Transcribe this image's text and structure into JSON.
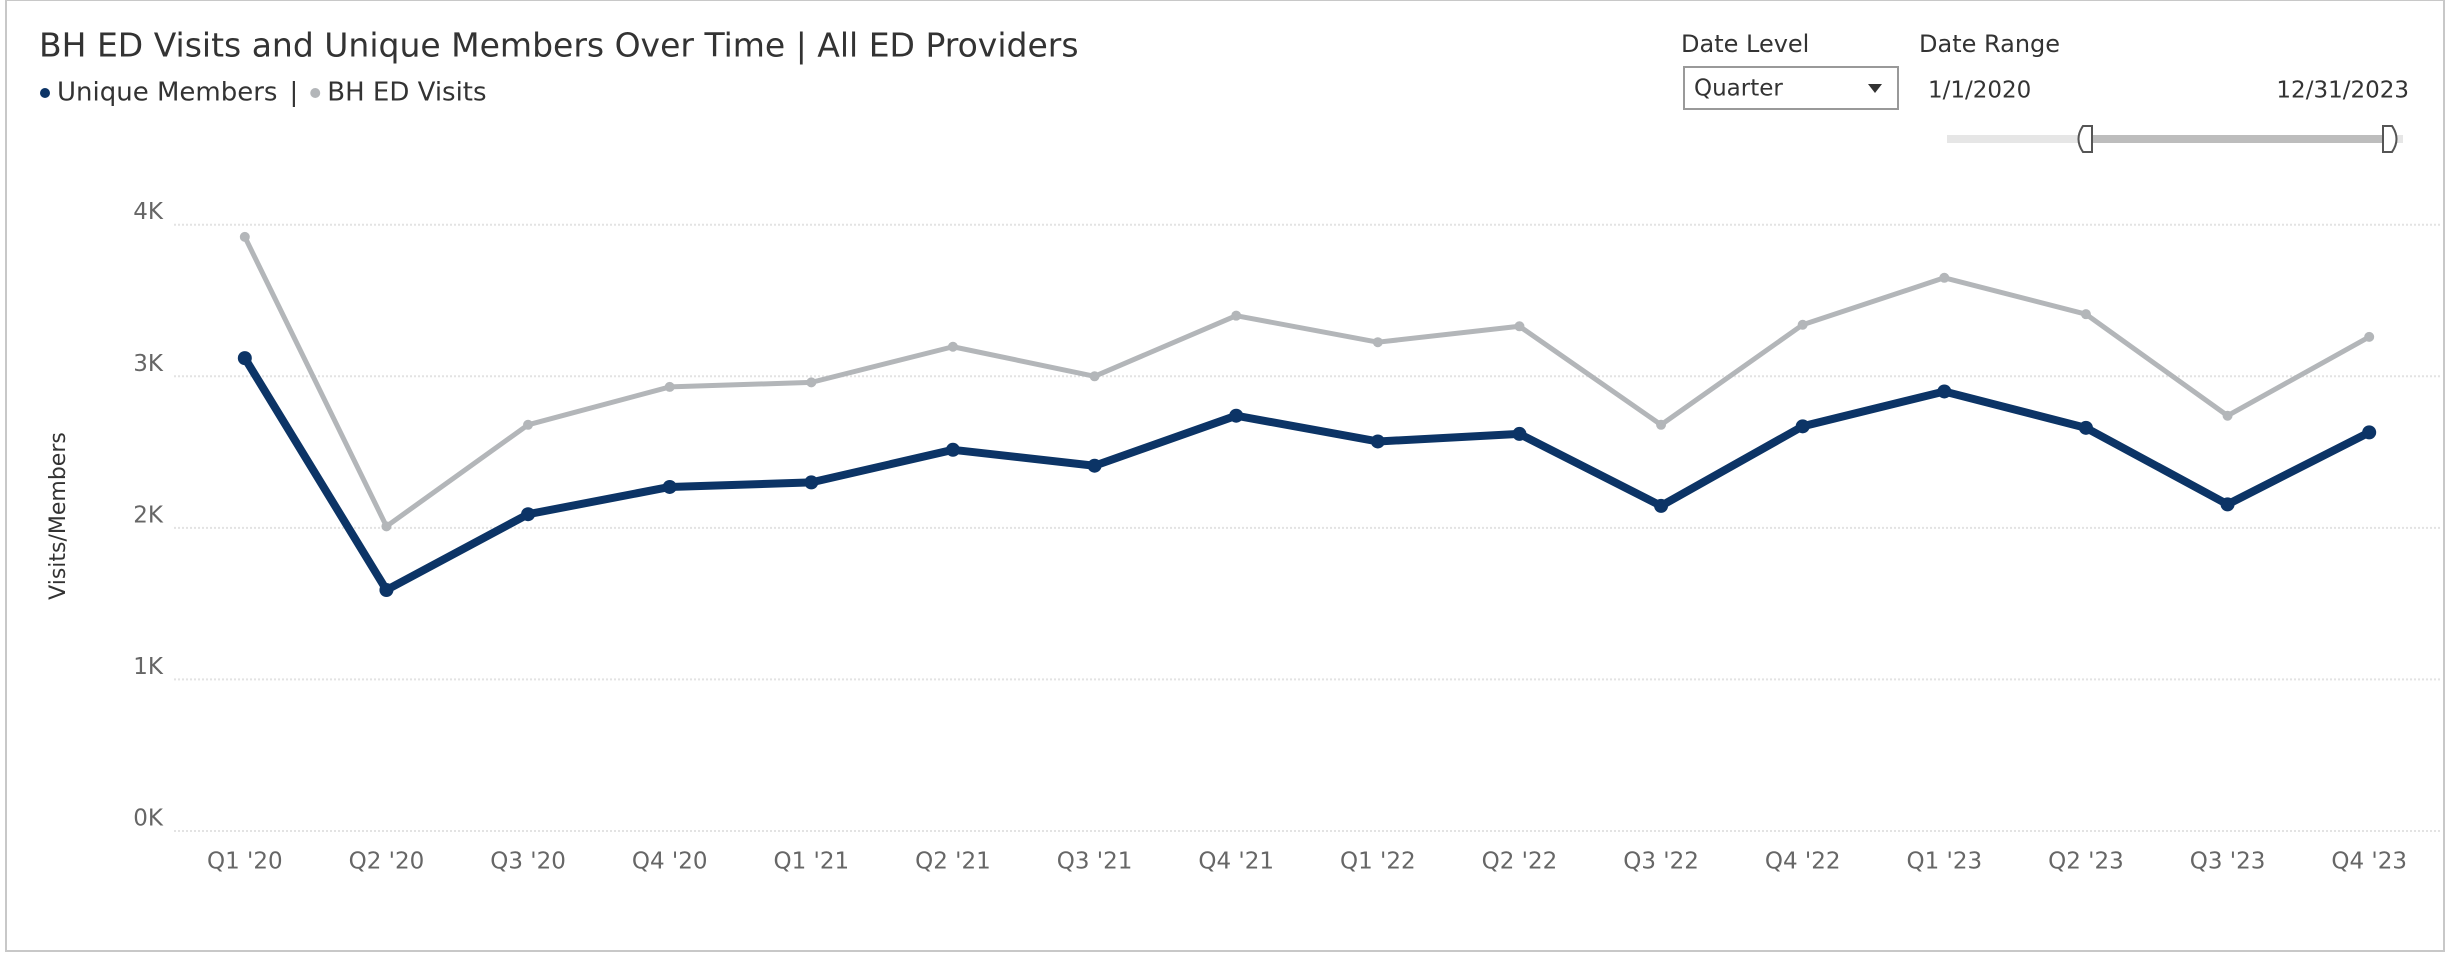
{
  "chart_data": {
    "type": "line",
    "title": "BH ED Visits and Unique Members Over Time | All ED Providers",
    "legend_separator": "|",
    "y_label": "Visits/Members",
    "categories": [
      "Q1 '20",
      "Q2 '20",
      "Q3 '20",
      "Q4 '20",
      "Q1 '21",
      "Q2 '21",
      "Q3 '21",
      "Q4 '21",
      "Q1 '22",
      "Q2 '22",
      "Q3 '22",
      "Q4 '22",
      "Q1 '23",
      "Q2 '23",
      "Q3 '23",
      "Q4 '23"
    ],
    "series": [
      {
        "name": "Unique Members",
        "color": "#0c3466",
        "values": [
          3120,
          1590,
          2090,
          2270,
          2300,
          2515,
          2410,
          2740,
          2570,
          2620,
          2145,
          2670,
          2900,
          2660,
          2155,
          2630
        ]
      },
      {
        "name": "BH ED Visits",
        "color": "#b3b6b9",
        "values": [
          3920,
          2010,
          2680,
          2930,
          2960,
          3195,
          3000,
          3400,
          3225,
          3330,
          2680,
          3340,
          3650,
          3410,
          2740,
          3260
        ]
      }
    ],
    "ylim": [
      0,
      4150
    ],
    "yticks": [
      {
        "value": 0,
        "label": "0K"
      },
      {
        "value": 1000,
        "label": "1K"
      },
      {
        "value": 2000,
        "label": "2K"
      },
      {
        "value": 3000,
        "label": "3K"
      },
      {
        "value": 4000,
        "label": "4K"
      }
    ],
    "grid": true
  },
  "controls": {
    "date_level": {
      "label": "Date Level",
      "value": "Quarter"
    },
    "date_range": {
      "label": "Date Range",
      "start": "1/1/2020",
      "end": "12/31/2023"
    }
  }
}
